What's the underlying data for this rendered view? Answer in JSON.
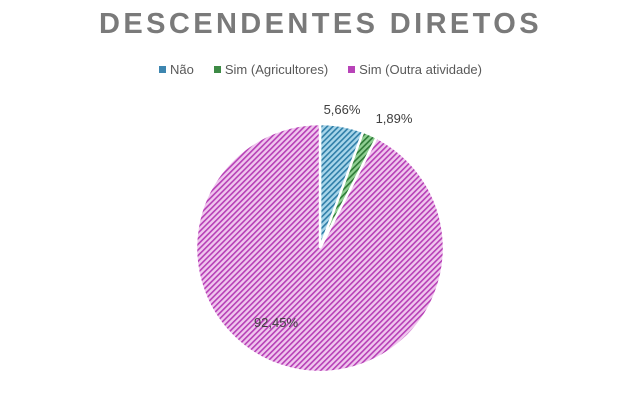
{
  "chart_data": {
    "type": "pie",
    "title": "DESCENDENTES DIRETOS",
    "categories": [
      "Não",
      "Sim (Agricultores)",
      "Sim (Outra atividade)"
    ],
    "values": [
      5.66,
      1.89,
      92.45
    ],
    "labels": [
      "5,66%",
      "1,89%",
      "92,45%"
    ],
    "colors": [
      "#4a9ec4",
      "#3d9a4a",
      "#c04fc0"
    ],
    "fill_pattern": "diagonal-hatch",
    "legend_position": "top",
    "start_angle_deg": 0,
    "direction": "clockwise"
  },
  "legend": {
    "items": [
      {
        "label": "Não",
        "color": "#3d86b0"
      },
      {
        "label": "Sim (Agricultores)",
        "color": "#3d8a45"
      },
      {
        "label": "Sim (Outra atividade)",
        "color": "#b843b8"
      }
    ]
  }
}
